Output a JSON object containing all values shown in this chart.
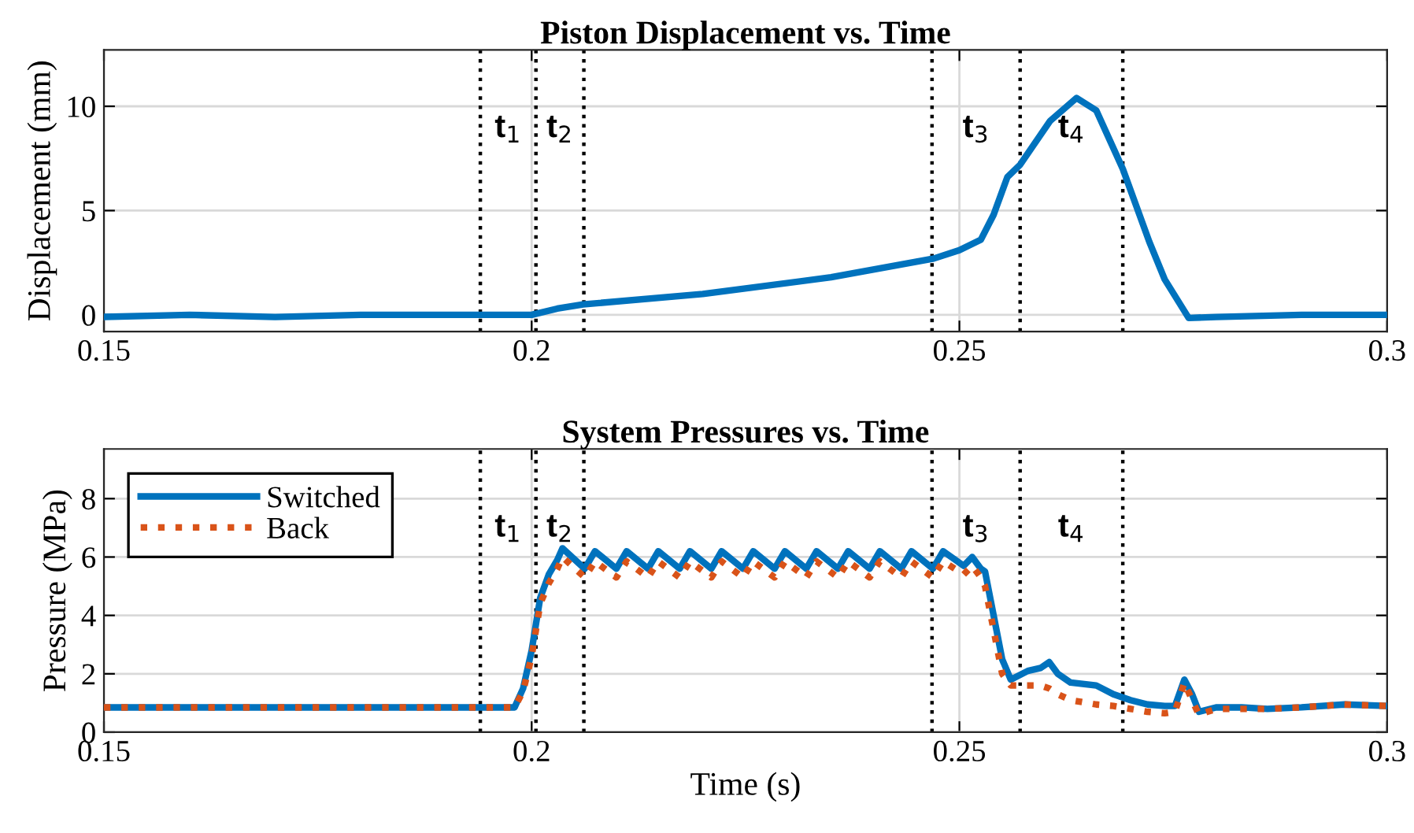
{
  "chart_data": [
    {
      "type": "line",
      "title": "Piston Displacement vs. Time",
      "ylabel": "Displacement (mm)",
      "x": [
        0.15,
        0.16,
        0.17,
        0.18,
        0.19,
        0.2,
        0.203,
        0.206,
        0.22,
        0.235,
        0.247,
        0.25,
        0.2525,
        0.254,
        0.2556,
        0.2571,
        0.2606,
        0.2637,
        0.266,
        0.2691,
        0.2722,
        0.274,
        0.2768,
        0.28,
        0.29,
        0.3
      ],
      "series": [
        {
          "color": "#0072bd",
          "values": [
            -0.1,
            0,
            -0.1,
            0,
            0,
            0,
            0.3,
            0.5,
            1.0,
            1.8,
            2.7,
            3.1,
            3.6,
            4.8,
            6.6,
            7.2,
            9.3,
            10.4,
            9.8,
            7.0,
            3.5,
            1.7,
            -0.15,
            -0.1,
            0,
            0
          ]
        }
      ],
      "xlim": [
        0.15,
        0.3
      ],
      "xticks": [
        0.15,
        0.2,
        0.25,
        0.3
      ],
      "ylim": [
        -0.8,
        12.7
      ],
      "yticks": [
        0,
        5,
        10
      ],
      "grid": true,
      "line_style": "solid",
      "ref_lines": [
        {
          "axis": "x",
          "value": 0.194,
          "label": "t$_{1}$",
          "color": "#000000",
          "line_style": "dotted"
        },
        {
          "axis": "x",
          "value": 0.2005,
          "label": "t$_{2}$",
          "color": "#000000",
          "line_style": "dotted"
        },
        {
          "axis": "x",
          "value": 0.2061,
          "color": "#000000",
          "line_style": "dotted"
        },
        {
          "axis": "x",
          "value": 0.2468,
          "label": "t$_{3}$",
          "color": "#000000",
          "line_style": "dotted"
        },
        {
          "axis": "x",
          "value": 0.2571,
          "label": "t$_{4}$",
          "color": "#000000",
          "line_style": "dotted"
        },
        {
          "axis": "x",
          "value": 0.2691,
          "color": "#000000",
          "line_style": "dotted"
        }
      ]
    },
    {
      "type": "line",
      "title": "System Pressures vs. Time",
      "xlabel": "Time (s)",
      "ylabel": "Pressure (MPa)",
      "x": [
        0.15,
        0.16,
        0.17,
        0.18,
        0.19,
        0.198,
        0.199,
        0.2,
        0.201,
        0.202,
        0.203,
        0.2036,
        0.2062,
        0.2074,
        0.2099,
        0.2111,
        0.2136,
        0.2148,
        0.2173,
        0.2185,
        0.221,
        0.2222,
        0.2247,
        0.2259,
        0.2284,
        0.2296,
        0.2321,
        0.2333,
        0.2358,
        0.237,
        0.2395,
        0.2407,
        0.2432,
        0.2444,
        0.2469,
        0.2481,
        0.2505,
        0.2515,
        0.2525,
        0.253,
        0.254,
        0.255,
        0.256,
        0.258,
        0.2595,
        0.2605,
        0.2615,
        0.263,
        0.266,
        0.268,
        0.27,
        0.272,
        0.274,
        0.2752,
        0.2763,
        0.2772,
        0.278,
        0.28,
        0.283,
        0.286,
        0.29,
        0.295,
        0.3
      ],
      "series": [
        {
          "name": "Switched",
          "color": "#0072bd",
          "line_style": "solid",
          "values": [
            0.85,
            0.85,
            0.85,
            0.85,
            0.85,
            0.85,
            1.5,
            2.8,
            4.6,
            5.4,
            5.9,
            6.3,
            5.6,
            6.2,
            5.6,
            6.2,
            5.6,
            6.2,
            5.6,
            6.2,
            5.6,
            6.2,
            5.6,
            6.2,
            5.6,
            6.2,
            5.6,
            6.2,
            5.6,
            6.2,
            5.6,
            6.2,
            5.6,
            6.2,
            5.6,
            6.2,
            5.7,
            6.0,
            5.6,
            5.5,
            4.0,
            2.5,
            1.8,
            2.1,
            2.2,
            2.4,
            2.0,
            1.7,
            1.6,
            1.3,
            1.1,
            0.95,
            0.9,
            0.9,
            1.8,
            1.3,
            0.7,
            0.85,
            0.85,
            0.8,
            0.85,
            0.95,
            0.9
          ]
        },
        {
          "name": "Back",
          "color": "#d95319",
          "line_style": "dotted",
          "values": [
            0.85,
            0.85,
            0.85,
            0.85,
            0.85,
            0.85,
            1.4,
            2.6,
            4.4,
            5.1,
            5.6,
            6.0,
            5.3,
            5.85,
            5.3,
            5.85,
            5.3,
            5.85,
            5.3,
            5.85,
            5.3,
            5.85,
            5.3,
            5.85,
            5.3,
            5.85,
            5.3,
            5.85,
            5.3,
            5.85,
            5.3,
            5.85,
            5.3,
            5.85,
            5.3,
            5.85,
            5.4,
            5.7,
            5.3,
            5.0,
            3.5,
            2.0,
            1.6,
            1.6,
            1.6,
            1.5,
            1.3,
            1.1,
            0.95,
            0.9,
            0.8,
            0.7,
            0.65,
            0.7,
            1.7,
            1.1,
            0.6,
            0.8,
            0.8,
            0.8,
            0.85,
            0.95,
            0.9
          ]
        }
      ],
      "xlim": [
        0.15,
        0.3
      ],
      "xticks": [
        0.15,
        0.2,
        0.25,
        0.3
      ],
      "ylim": [
        0,
        9.7
      ],
      "yticks": [
        0,
        2,
        4,
        6,
        8
      ],
      "grid": true,
      "legend": "top left",
      "ref_lines": [
        {
          "axis": "x",
          "value": 0.194,
          "label": "t$_{1}$",
          "color": "#000000",
          "line_style": "dotted"
        },
        {
          "axis": "x",
          "value": 0.2005,
          "label": "t$_{2}$",
          "color": "#000000",
          "line_style": "dotted"
        },
        {
          "axis": "x",
          "value": 0.2061,
          "color": "#000000",
          "line_style": "dotted"
        },
        {
          "axis": "x",
          "value": 0.2468,
          "label": "t$_{3}$",
          "color": "#000000",
          "line_style": "dotted"
        },
        {
          "axis": "x",
          "value": 0.2571,
          "label": "t$_{4}$",
          "color": "#000000",
          "line_style": "dotted"
        },
        {
          "axis": "x",
          "value": 0.2691,
          "color": "#000000",
          "line_style": "dotted"
        }
      ]
    }
  ]
}
